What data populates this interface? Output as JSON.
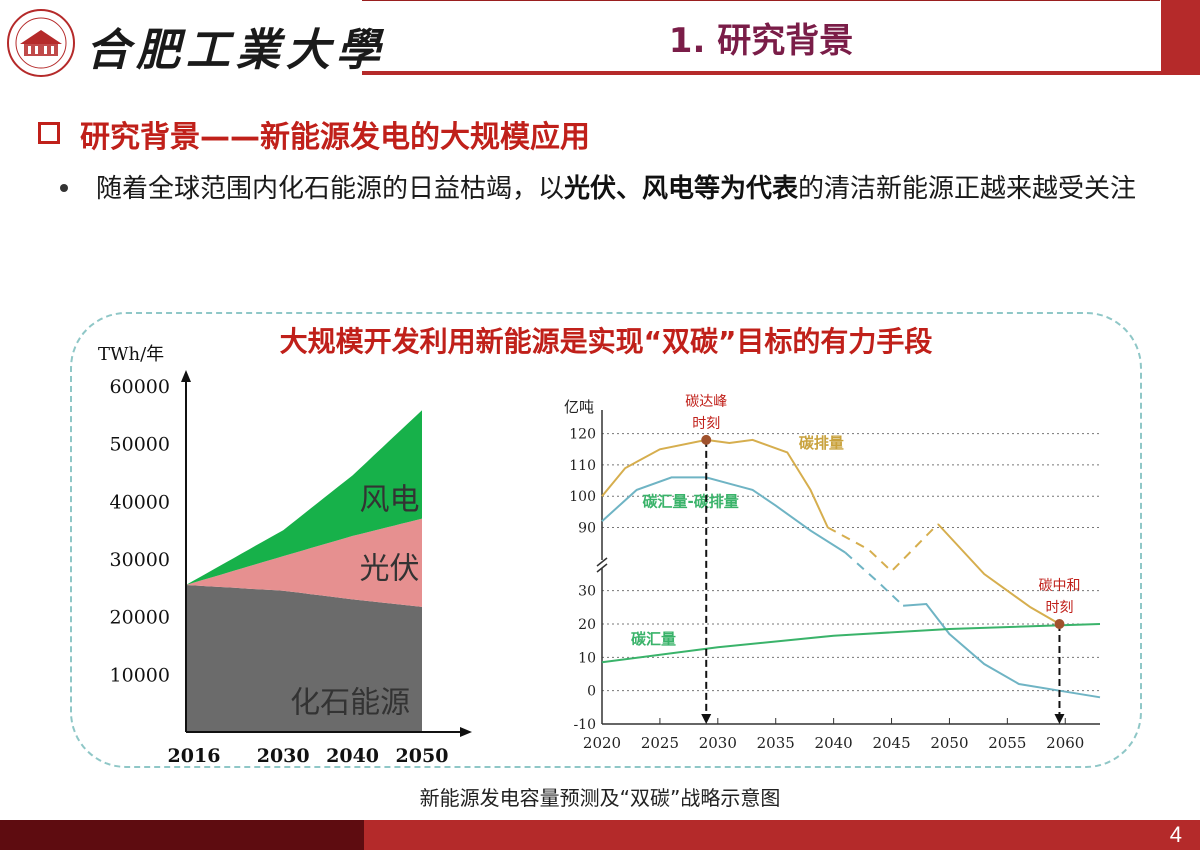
{
  "header": {
    "university_name": "合肥工業大學",
    "slide_title": "1. 研究背景"
  },
  "section": {
    "title": "研究背景——新能源发电的大规模应用"
  },
  "bullet": {
    "text_before": "随着全球范围内化石能源的日益枯竭，以",
    "text_bold": "光伏、风电等为代表",
    "text_after": "的清洁新能源正越来越受关注"
  },
  "figure": {
    "panel_title": "大规模开发利用新能源是实现“双碳”目标的有力手段",
    "caption": "新能源发电容量预测及“双碳”战略示意图"
  },
  "footer": {
    "page_number": "4"
  },
  "colors": {
    "brand_red": "#b42a2a",
    "dark_red": "#5e0c10",
    "title_purple": "#7a1d48",
    "wind_green": "#17b14a",
    "pv_pink": "#e69090",
    "fossil_gray": "#6b6b6b",
    "emission_gold": "#d6ae4e",
    "net_blue": "#6fb4c4",
    "sink_green": "#3ab36a",
    "annotation_red": "#c0201a"
  },
  "chart_data": [
    {
      "type": "area",
      "stacked": true,
      "ylabel": "TWh/年",
      "yticks": [
        10000,
        20000,
        30000,
        40000,
        50000,
        60000
      ],
      "xticks": [
        2016,
        2030,
        2040,
        2050
      ],
      "ylim": [
        0,
        60000
      ],
      "x": [
        2016,
        2030,
        2040,
        2050
      ],
      "series": [
        {
          "name": "化石能源",
          "color": "#6b6b6b",
          "values": [
            25500,
            24500,
            23000,
            21700
          ]
        },
        {
          "name": "光伏",
          "color": "#e69090",
          "values": [
            0,
            6000,
            11000,
            15300
          ]
        },
        {
          "name": "风电",
          "color": "#17b14a",
          "values": [
            0,
            4500,
            10500,
            18800
          ]
        }
      ]
    },
    {
      "type": "line",
      "ylabel": "亿吨",
      "x_ticks": [
        2020,
        2025,
        2030,
        2035,
        2040,
        2045,
        2050,
        2055,
        2060
      ],
      "y_ticks_upper": [
        90,
        100,
        110,
        120
      ],
      "y_ticks_lower": [
        -10,
        0,
        10,
        20,
        30
      ],
      "axis_break": true,
      "series": [
        {
          "name": "碳排量",
          "color": "#d6ae4e",
          "points": [
            [
              2020,
              100
            ],
            [
              2022,
              109
            ],
            [
              2025,
              115
            ],
            [
              2029,
              118
            ],
            [
              2031,
              117
            ],
            [
              2033,
              118
            ],
            [
              2036,
              114
            ],
            [
              2038,
              102
            ],
            [
              2039.5,
              90
            ],
            [
              2043,
              83
            ],
            [
              2045,
              76
            ],
            [
              2049,
              50
            ],
            [
              2053,
              35
            ],
            [
              2057,
              25
            ],
            [
              2059.5,
              20
            ]
          ],
          "dashed_from": 2039.5,
          "dashed_to": 2049
        },
        {
          "name": "碳汇量-碳排量",
          "color": "#6fb4c4",
          "points": [
            [
              2020,
              92
            ],
            [
              2023,
              102
            ],
            [
              2026,
              106
            ],
            [
              2029,
              106
            ],
            [
              2031,
              104
            ],
            [
              2033,
              102
            ],
            [
              2035,
              97
            ],
            [
              2038,
              89
            ],
            [
              2041,
              82
            ],
            [
              2044,
              72
            ],
            [
              2046,
              65
            ],
            [
              2048,
              26
            ],
            [
              2050,
              17
            ],
            [
              2053,
              8
            ],
            [
              2056,
              2
            ],
            [
              2059.5,
              0
            ],
            [
              2063,
              -2
            ]
          ],
          "dashed_from": 2041,
          "dashed_to": 2046
        },
        {
          "name": "碳汇量",
          "color": "#3ab36a",
          "points": [
            [
              2020,
              8.5
            ],
            [
              2030,
              13
            ],
            [
              2040,
              16.5
            ],
            [
              2050,
              18.5
            ],
            [
              2063,
              20
            ]
          ]
        }
      ],
      "annotations": [
        {
          "label_line1": "碳达峰",
          "label_line2": "时刻",
          "x": 2029,
          "y": 118
        },
        {
          "label_line1": "碳中和",
          "label_line2": "时刻",
          "x": 2059.5,
          "y": 20
        }
      ]
    }
  ]
}
